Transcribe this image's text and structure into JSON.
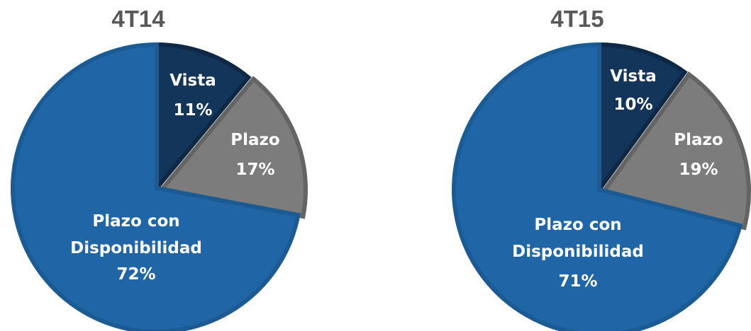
{
  "chart_data": [
    {
      "type": "pie",
      "title": "4T14",
      "categories": [
        "Vista",
        "Plazo",
        "Plazo con Disponibilidad"
      ],
      "values": [
        11,
        17,
        72
      ],
      "labels": [
        [
          "Vista",
          "11%"
        ],
        [
          "Plazo",
          "17%"
        ],
        [
          "Plazo con",
          "Disponibilidad",
          "72%"
        ]
      ],
      "colors": [
        "#13355a",
        "#7c7c7c",
        "#2066a6"
      ],
      "border_colors": [
        "#0e2845",
        "#646464",
        "#1b5a93"
      ],
      "start_angle_deg": 0,
      "direction": "clockwise"
    },
    {
      "type": "pie",
      "title": "4T15",
      "categories": [
        "Vista",
        "Plazo",
        "Plazo con Disponibilidad"
      ],
      "values": [
        10,
        19,
        71
      ],
      "labels": [
        [
          "Vista",
          "10%"
        ],
        [
          "Plazo",
          "19%"
        ],
        [
          "Plazo con",
          "Disponibilidad",
          "71%"
        ]
      ],
      "colors": [
        "#13355a",
        "#7c7c7c",
        "#2066a6"
      ],
      "border_colors": [
        "#0e2845",
        "#646464",
        "#1b5a93"
      ],
      "start_angle_deg": 0,
      "direction": "clockwise"
    }
  ]
}
